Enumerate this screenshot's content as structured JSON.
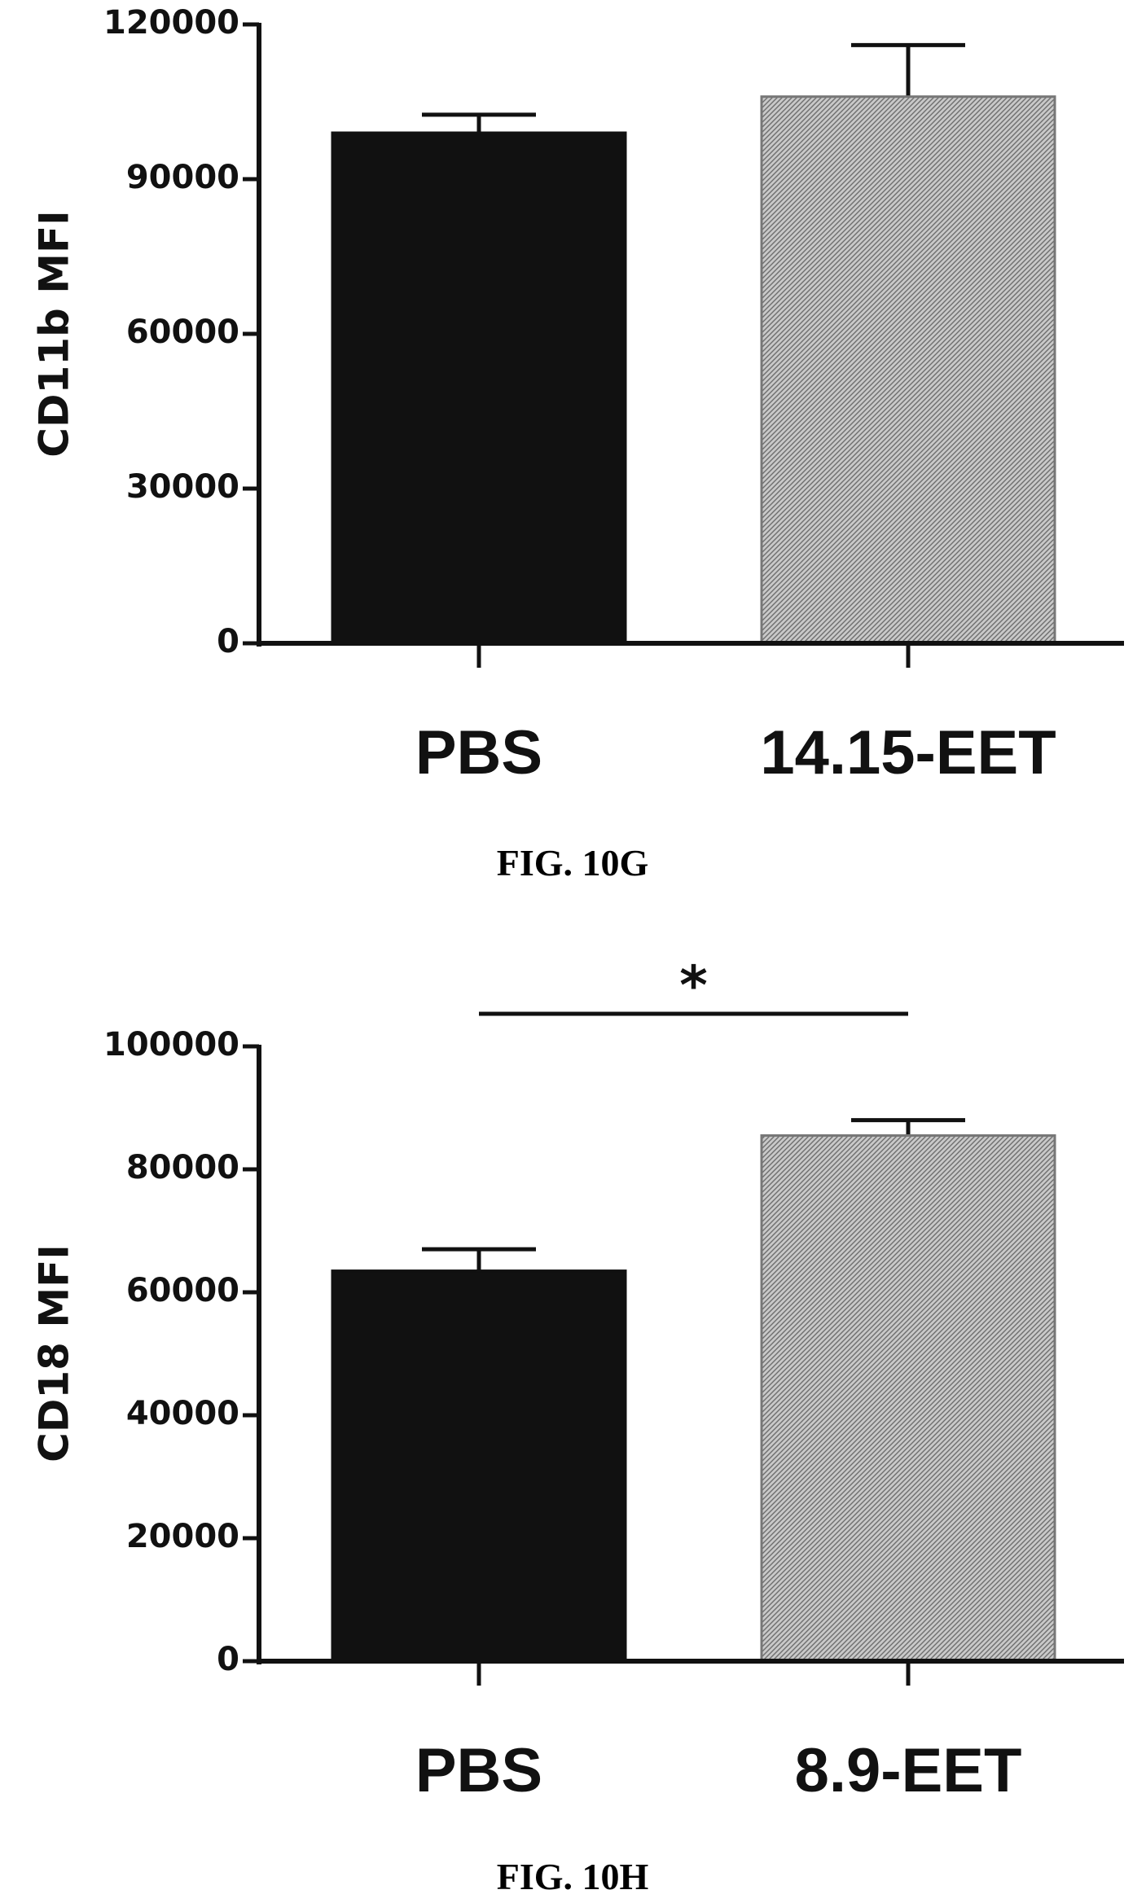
{
  "chart_data": [
    {
      "type": "bar",
      "title": "",
      "caption": "FIG. 10G",
      "ylabel": "CD11b MFI",
      "xlabel": "",
      "categories": [
        "PBS",
        "14.15-EET"
      ],
      "values": [
        99000,
        106000
      ],
      "error": [
        3500,
        10000
      ],
      "ylim": [
        0,
        120000
      ],
      "yticks": [
        0,
        30000,
        60000,
        90000,
        120000
      ],
      "bar_styles": [
        "solid-black",
        "hatched-gray"
      ],
      "colors": {
        "solid": "#111111",
        "hatch": "#8c8c8c"
      },
      "grid": false,
      "legend": "none",
      "significance": null
    },
    {
      "type": "bar",
      "title": "",
      "caption": "FIG. 10H",
      "ylabel": "CD18 MFI",
      "xlabel": "",
      "categories": [
        "PBS",
        "8.9-EET"
      ],
      "values": [
        63500,
        85500
      ],
      "error": [
        3500,
        2500
      ],
      "ylim": [
        0,
        100000
      ],
      "yticks": [
        0,
        20000,
        40000,
        60000,
        80000,
        100000
      ],
      "bar_styles": [
        "solid-black",
        "hatched-gray"
      ],
      "colors": {
        "solid": "#111111",
        "hatch": "#8c8c8c"
      },
      "grid": false,
      "legend": "none",
      "significance": {
        "between": [
          0,
          1
        ],
        "label": "*"
      }
    }
  ]
}
